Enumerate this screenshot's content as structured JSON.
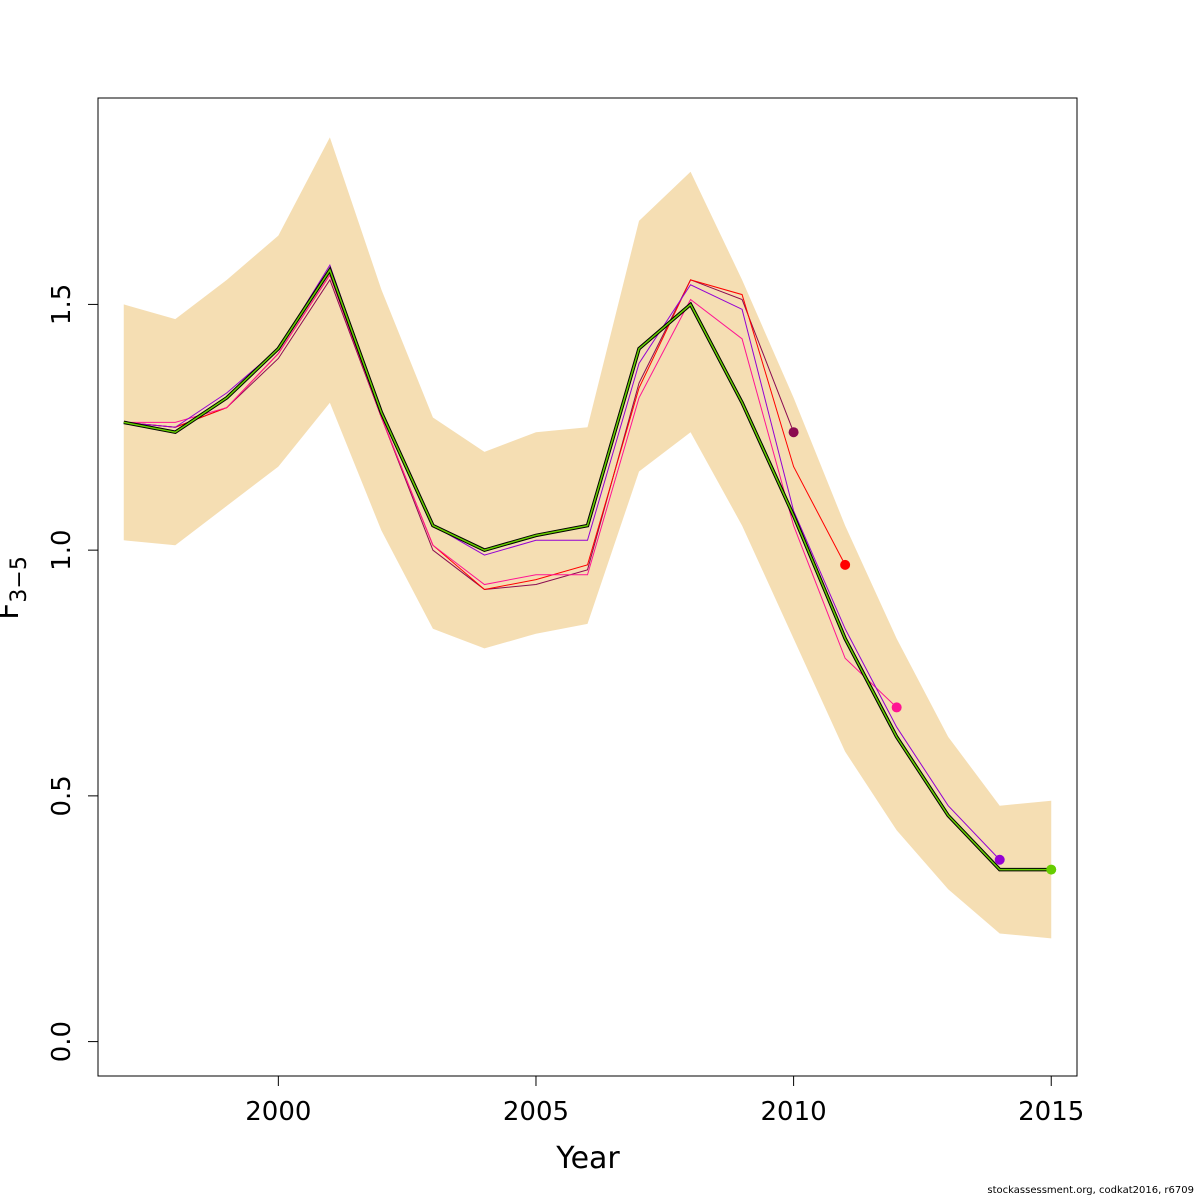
{
  "chart_data": {
    "type": "line",
    "title": "",
    "xlabel": "Year",
    "ylabel": "F",
    "ylabel_subscript": "3−5",
    "xlim": [
      1996.5,
      2015.5
    ],
    "ylim": [
      -0.07,
      1.92
    ],
    "x_ticks": [
      2000,
      2005,
      2010,
      2015
    ],
    "y_ticks": [
      0.0,
      0.5,
      1.0,
      1.5
    ],
    "y_tick_labels": [
      "0.0",
      "0.5",
      "1.0",
      "1.5"
    ],
    "grid": false,
    "legend": "none",
    "confidence_band": {
      "color": "#F5DEB3",
      "x": [
        1997,
        1998,
        1999,
        2000,
        2001,
        2002,
        2003,
        2004,
        2005,
        2006,
        2007,
        2008,
        2009,
        2010,
        2011,
        2012,
        2013,
        2014,
        2015
      ],
      "lower": [
        1.02,
        1.01,
        1.09,
        1.17,
        1.3,
        1.04,
        0.84,
        0.8,
        0.83,
        0.85,
        1.16,
        1.24,
        1.05,
        0.82,
        0.59,
        0.43,
        0.31,
        0.22,
        0.21
      ],
      "upper": [
        1.5,
        1.47,
        1.55,
        1.64,
        1.84,
        1.53,
        1.27,
        1.2,
        1.24,
        1.25,
        1.67,
        1.77,
        1.55,
        1.31,
        1.05,
        0.82,
        0.62,
        0.48,
        0.49
      ]
    },
    "series": [
      {
        "color": "#8B0A50",
        "x": [
          1997,
          1998,
          1999,
          2000,
          2001,
          2002,
          2003,
          2004,
          2005,
          2006,
          2007,
          2008,
          2009,
          2010
        ],
        "values": [
          1.26,
          1.25,
          1.29,
          1.39,
          1.55,
          1.27,
          1.0,
          0.92,
          0.93,
          0.96,
          1.34,
          1.55,
          1.51,
          1.24
        ],
        "endpoint": true
      },
      {
        "color": "#FF0000",
        "x": [
          1997,
          1998,
          1999,
          2000,
          2001,
          2002,
          2003,
          2004,
          2005,
          2006,
          2007,
          2008,
          2009,
          2010,
          2011
        ],
        "values": [
          1.26,
          1.25,
          1.29,
          1.4,
          1.56,
          1.27,
          1.01,
          0.92,
          0.94,
          0.97,
          1.33,
          1.55,
          1.52,
          1.17,
          0.97
        ],
        "endpoint": true
      },
      {
        "color": "#FF1493",
        "x": [
          1997,
          1998,
          1999,
          2000,
          2001,
          2002,
          2003,
          2004,
          2005,
          2006,
          2007,
          2008,
          2009,
          2010,
          2011,
          2012
        ],
        "values": [
          1.26,
          1.26,
          1.29,
          1.4,
          1.56,
          1.27,
          1.01,
          0.93,
          0.95,
          0.95,
          1.31,
          1.51,
          1.43,
          1.05,
          0.78,
          0.68
        ],
        "endpoint": true
      },
      {
        "color": "#9400D3",
        "x": [
          1997,
          1998,
          1999,
          2000,
          2001,
          2002,
          2003,
          2004,
          2005,
          2006,
          2007,
          2008,
          2009,
          2010,
          2011,
          2012,
          2013,
          2014
        ],
        "values": [
          1.26,
          1.25,
          1.32,
          1.41,
          1.58,
          1.28,
          1.05,
          0.99,
          1.02,
          1.02,
          1.38,
          1.54,
          1.49,
          1.08,
          0.84,
          0.64,
          0.48,
          0.37
        ],
        "endpoint": true
      },
      {
        "color": "#000000",
        "x": [
          1997,
          1998,
          1999,
          2000,
          2001,
          2002,
          2003,
          2004,
          2005,
          2006,
          2007,
          2008,
          2009,
          2010,
          2011,
          2012,
          2013,
          2014,
          2015
        ],
        "values": [
          1.26,
          1.24,
          1.31,
          1.41,
          1.57,
          1.28,
          1.05,
          1.0,
          1.03,
          1.05,
          1.41,
          1.5,
          1.3,
          1.07,
          0.82,
          0.62,
          0.46,
          0.35,
          0.35
        ],
        "endpoint": false
      },
      {
        "color": "#66CD00",
        "x": [
          1997,
          1998,
          1999,
          2000,
          2001,
          2002,
          2003,
          2004,
          2005,
          2006,
          2007,
          2008,
          2009,
          2010,
          2011,
          2012,
          2013,
          2014,
          2015
        ],
        "values": [
          1.26,
          1.24,
          1.31,
          1.41,
          1.57,
          1.28,
          1.05,
          1.0,
          1.03,
          1.05,
          1.41,
          1.5,
          1.3,
          1.07,
          0.82,
          0.62,
          0.46,
          0.35,
          0.35
        ],
        "endpoint": true
      }
    ]
  },
  "footer_text": "stockassessment.org, codkat2016, r6709"
}
